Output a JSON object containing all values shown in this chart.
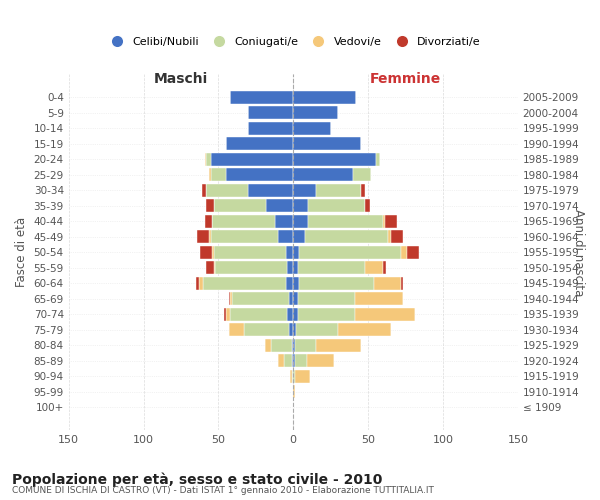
{
  "age_groups": [
    "100+",
    "95-99",
    "90-94",
    "85-89",
    "80-84",
    "75-79",
    "70-74",
    "65-69",
    "60-64",
    "55-59",
    "50-54",
    "45-49",
    "40-44",
    "35-39",
    "30-34",
    "25-29",
    "20-24",
    "15-19",
    "10-14",
    "5-9",
    "0-4"
  ],
  "birth_years": [
    "≤ 1909",
    "1910-1914",
    "1915-1919",
    "1920-1924",
    "1925-1929",
    "1930-1934",
    "1935-1939",
    "1940-1944",
    "1945-1949",
    "1950-1954",
    "1955-1959",
    "1960-1964",
    "1965-1969",
    "1970-1974",
    "1975-1979",
    "1980-1984",
    "1985-1989",
    "1990-1994",
    "1995-1999",
    "2000-2004",
    "2005-2009"
  ],
  "m_cel": [
    0,
    0,
    0,
    1,
    1,
    3,
    4,
    3,
    5,
    4,
    5,
    10,
    12,
    18,
    30,
    45,
    55,
    45,
    30,
    30,
    42
  ],
  "m_con": [
    0,
    0,
    1,
    5,
    14,
    30,
    38,
    38,
    55,
    48,
    48,
    45,
    42,
    35,
    28,
    10,
    3,
    0,
    0,
    0,
    0
  ],
  "m_ved": [
    0,
    0,
    1,
    4,
    4,
    10,
    3,
    1,
    3,
    1,
    1,
    1,
    0,
    0,
    0,
    1,
    1,
    0,
    0,
    0,
    0
  ],
  "m_div": [
    0,
    0,
    0,
    0,
    0,
    0,
    1,
    1,
    2,
    5,
    8,
    8,
    5,
    5,
    3,
    0,
    0,
    0,
    0,
    0,
    0
  ],
  "f_nub": [
    0,
    0,
    0,
    1,
    1,
    2,
    3,
    3,
    4,
    3,
    4,
    8,
    10,
    10,
    15,
    40,
    55,
    45,
    25,
    30,
    42
  ],
  "f_con": [
    0,
    0,
    1,
    8,
    14,
    28,
    38,
    38,
    50,
    45,
    68,
    55,
    50,
    38,
    30,
    12,
    3,
    0,
    0,
    0,
    0
  ],
  "f_ved": [
    0,
    1,
    10,
    18,
    30,
    35,
    40,
    32,
    18,
    12,
    4,
    2,
    1,
    0,
    0,
    0,
    0,
    0,
    0,
    0,
    0
  ],
  "f_div": [
    0,
    0,
    0,
    0,
    0,
    0,
    0,
    0,
    1,
    2,
    8,
    8,
    8,
    3,
    3,
    0,
    0,
    0,
    0,
    0,
    0
  ],
  "colors": {
    "celibi": "#4472c4",
    "coniugati": "#c5d9a0",
    "vedovi": "#f5c87a",
    "divorziati": "#c0392b"
  },
  "xlim": 150,
  "title": "Popolazione per età, sesso e stato civile - 2010",
  "subtitle": "COMUNE DI ISCHIA DI CASTRO (VT) - Dati ISTAT 1° gennaio 2010 - Elaborazione TUTTITALIA.IT",
  "ylabel_left": "Fasce di età",
  "ylabel_right": "Anni di nascita",
  "xlabel_maschi": "Maschi",
  "xlabel_femmine": "Femmine",
  "legend_labels": [
    "Celibi/Nubili",
    "Coniugati/e",
    "Vedovi/e",
    "Divorziati/e"
  ],
  "background_color": "#ffffff",
  "grid_color": "#cccccc"
}
